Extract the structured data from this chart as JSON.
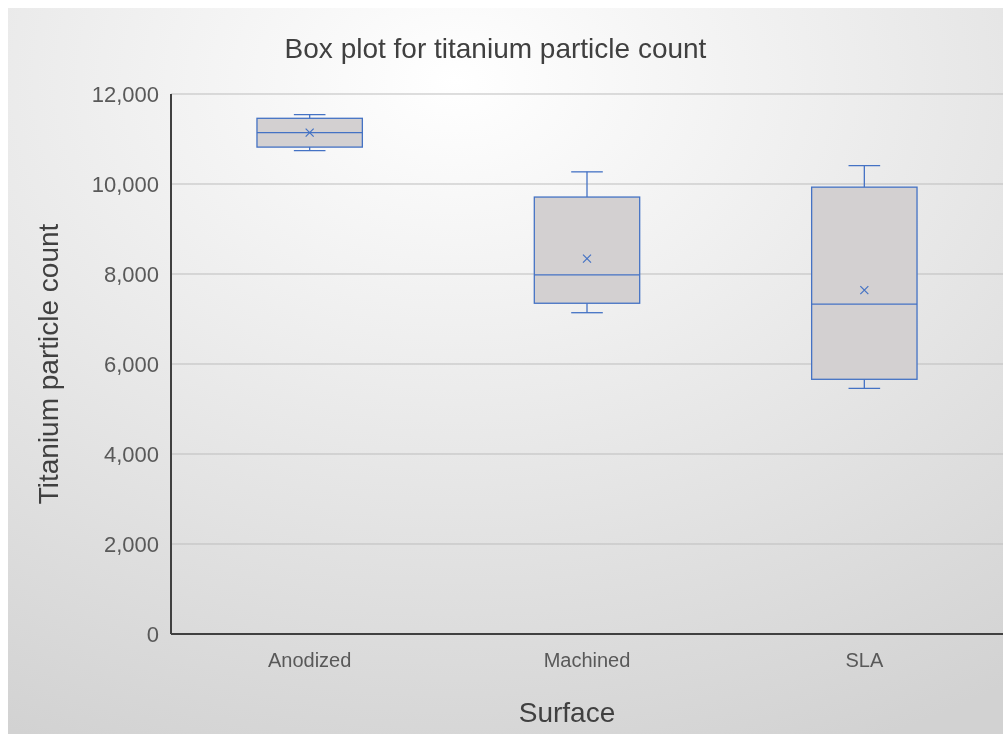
{
  "chart_data": {
    "type": "box",
    "title": "Box plot for titanium particle count",
    "xlabel": "Surface",
    "ylabel": "Titanium particle count",
    "categories": [
      "Anodized",
      "Machined",
      "SLA"
    ],
    "boxes": [
      {
        "low": 10740,
        "q1": 10820,
        "median": 11140,
        "q3": 11460,
        "high": 11540,
        "mean": 11140
      },
      {
        "low": 7140,
        "q1": 7350,
        "median": 7980,
        "q3": 9710,
        "high": 10270,
        "mean": 8340
      },
      {
        "low": 5460,
        "q1": 5660,
        "median": 7330,
        "q3": 9930,
        "high": 10410,
        "mean": 7640
      }
    ],
    "color": "#4472c4",
    "ylim": [
      0,
      12000
    ],
    "yticks": [
      {
        "value": 0,
        "label": "0"
      },
      {
        "value": 2000,
        "label": "2,000"
      },
      {
        "value": 4000,
        "label": "4,000"
      },
      {
        "value": 6000,
        "label": "6,000"
      },
      {
        "value": 8000,
        "label": "8,000"
      },
      {
        "value": 10000,
        "label": "10,000"
      },
      {
        "value": 12000,
        "label": "12,000"
      }
    ],
    "grid": "y"
  }
}
